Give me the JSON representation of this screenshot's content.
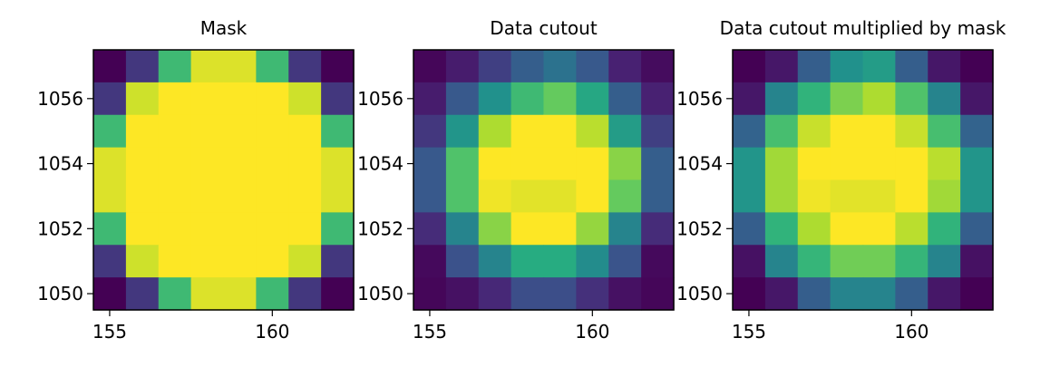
{
  "chart_data": [
    {
      "type": "heatmap",
      "title": "Mask",
      "xlabel": "",
      "ylabel": "",
      "x_range": [
        154.5,
        162.5
      ],
      "y_range": [
        1049.5,
        1057.5
      ],
      "x_ticks": [
        155,
        160
      ],
      "y_ticks": [
        1050,
        1052,
        1054,
        1056
      ],
      "colormap": "viridis",
      "value_range": [
        0,
        1
      ],
      "rows_top_to_bottom": [
        [
          0.0,
          0.18,
          0.68,
          0.95,
          0.95,
          0.68,
          0.18,
          0.0
        ],
        [
          0.18,
          0.93,
          1.0,
          1.0,
          1.0,
          1.0,
          0.93,
          0.18
        ],
        [
          0.68,
          1.0,
          1.0,
          1.0,
          1.0,
          1.0,
          1.0,
          0.68
        ],
        [
          0.95,
          1.0,
          1.0,
          1.0,
          1.0,
          1.0,
          1.0,
          0.95
        ],
        [
          0.95,
          1.0,
          1.0,
          1.0,
          1.0,
          1.0,
          1.0,
          0.95
        ],
        [
          0.68,
          1.0,
          1.0,
          1.0,
          1.0,
          1.0,
          1.0,
          0.68
        ],
        [
          0.18,
          0.93,
          1.0,
          1.0,
          1.0,
          1.0,
          0.93,
          0.18
        ],
        [
          0.0,
          0.18,
          0.68,
          0.95,
          0.95,
          0.68,
          0.18,
          0.0
        ]
      ]
    },
    {
      "type": "heatmap",
      "title": "Data cutout",
      "xlabel": "",
      "ylabel": "",
      "x_range": [
        154.5,
        162.5
      ],
      "y_range": [
        1049.5,
        1057.5
      ],
      "x_ticks": [
        155,
        160
      ],
      "y_ticks": [
        1050,
        1052,
        1054,
        1056
      ],
      "colormap": "viridis",
      "value_range": [
        0,
        1
      ],
      "rows_top_to_bottom": [
        [
          0.02,
          0.1,
          0.2,
          0.3,
          0.38,
          0.28,
          0.12,
          0.04
        ],
        [
          0.1,
          0.28,
          0.5,
          0.68,
          0.76,
          0.6,
          0.3,
          0.12
        ],
        [
          0.18,
          0.52,
          0.88,
          1.0,
          1.0,
          0.9,
          0.55,
          0.2
        ],
        [
          0.28,
          0.72,
          1.0,
          1.0,
          1.0,
          1.0,
          0.82,
          0.3
        ],
        [
          0.28,
          0.72,
          0.98,
          0.96,
          0.96,
          1.0,
          0.76,
          0.3
        ],
        [
          0.15,
          0.45,
          0.82,
          1.0,
          1.0,
          0.84,
          0.45,
          0.15
        ],
        [
          0.03,
          0.25,
          0.45,
          0.62,
          0.62,
          0.48,
          0.26,
          0.03
        ],
        [
          0.02,
          0.06,
          0.14,
          0.24,
          0.24,
          0.16,
          0.06,
          0.02
        ]
      ]
    },
    {
      "type": "heatmap",
      "title": "Data cutout multiplied by mask",
      "xlabel": "",
      "ylabel": "",
      "x_range": [
        154.5,
        162.5
      ],
      "y_range": [
        1049.5,
        1057.5
      ],
      "x_ticks": [
        155,
        160
      ],
      "y_ticks": [
        1050,
        1052,
        1054,
        1056
      ],
      "colormap": "viridis",
      "value_range": [
        0,
        1
      ],
      "rows_top_to_bottom": [
        [
          0.0,
          0.08,
          0.3,
          0.5,
          0.55,
          0.3,
          0.08,
          0.0
        ],
        [
          0.08,
          0.45,
          0.65,
          0.8,
          0.88,
          0.72,
          0.45,
          0.08
        ],
        [
          0.32,
          0.7,
          0.92,
          1.0,
          1.0,
          0.92,
          0.7,
          0.32
        ],
        [
          0.52,
          0.86,
          1.0,
          1.0,
          1.0,
          1.0,
          0.9,
          0.52
        ],
        [
          0.52,
          0.86,
          0.98,
          0.96,
          0.96,
          1.0,
          0.86,
          0.52
        ],
        [
          0.3,
          0.65,
          0.88,
          1.0,
          1.0,
          0.9,
          0.65,
          0.3
        ],
        [
          0.06,
          0.45,
          0.66,
          0.78,
          0.78,
          0.66,
          0.45,
          0.06
        ],
        [
          0.0,
          0.08,
          0.3,
          0.45,
          0.45,
          0.3,
          0.08,
          0.0
        ]
      ]
    }
  ]
}
